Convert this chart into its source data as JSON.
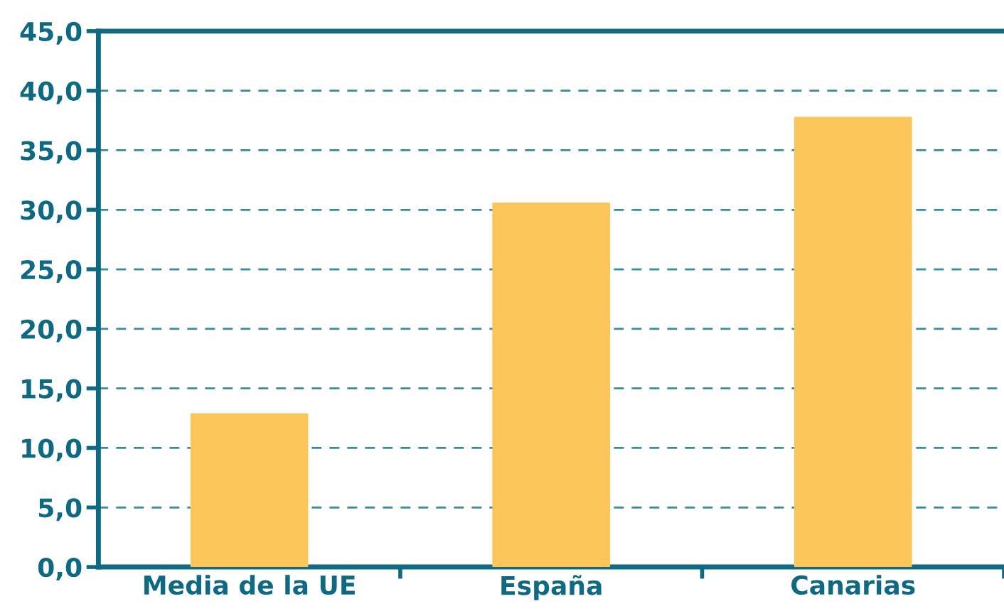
{
  "chart_data": {
    "type": "bar",
    "categories": [
      "Media de la UE",
      "España",
      "Canarias"
    ],
    "values": [
      12.9,
      30.6,
      37.8
    ],
    "color": "#fcc55a",
    "ylim": [
      0,
      45
    ],
    "yticks": [
      {
        "value": 0,
        "label": "0,0"
      },
      {
        "value": 5,
        "label": "5,0"
      },
      {
        "value": 10,
        "label": "10,0"
      },
      {
        "value": 15,
        "label": "15,0"
      },
      {
        "value": 20,
        "label": "20,0"
      },
      {
        "value": 25,
        "label": "25,0"
      },
      {
        "value": 30,
        "label": "30,0"
      },
      {
        "value": 35,
        "label": "35,0"
      },
      {
        "value": 40,
        "label": "40,0"
      },
      {
        "value": 45,
        "label": "45,0"
      }
    ],
    "grid": "y"
  }
}
